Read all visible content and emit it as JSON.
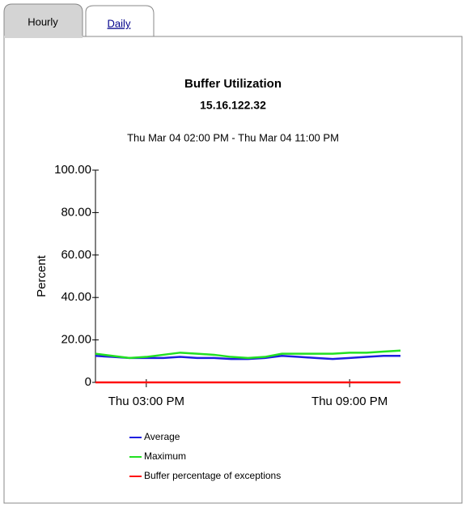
{
  "tabs": [
    "Hourly",
    "Daily"
  ],
  "chart_data": {
    "type": "line",
    "title": "Buffer Utilization",
    "subtitle": "15.16.122.32",
    "date_range": "Thu Mar 04 02:00 PM - Thu Mar 04 11:00 PM",
    "y_label": "Percent",
    "x": [
      13.5,
      14,
      14.5,
      15,
      15.5,
      16,
      16.5,
      17,
      17.5,
      18,
      18.5,
      19,
      19.5,
      20,
      20.5,
      21,
      21.5,
      22,
      22.5
    ],
    "xlim": [
      13.5,
      22.5
    ],
    "xticks": [
      {
        "value": 15,
        "label": "Thu 03:00 PM"
      },
      {
        "value": 21,
        "label": "Thu 09:00 PM"
      }
    ],
    "ylim": [
      0,
      100
    ],
    "yticks": [
      0,
      {
        "value": 20,
        "label": "20.00"
      },
      {
        "value": 40,
        "label": "40.00"
      },
      {
        "value": 60,
        "label": "60.00"
      },
      {
        "value": 80,
        "label": "80.00"
      },
      {
        "value": 100,
        "label": "100.00"
      }
    ],
    "series": [
      {
        "name": "Average",
        "color": "#1f1fe0",
        "values": [
          12.5,
          12,
          11.5,
          11.5,
          11.5,
          12,
          11.5,
          11.5,
          11,
          11,
          11.5,
          12.5,
          12,
          11.5,
          11,
          11.5,
          12,
          12.5,
          12.5
        ]
      },
      {
        "name": "Maximum",
        "color": "#22e022",
        "values": [
          13.5,
          12.5,
          11.5,
          12,
          13,
          14,
          13.5,
          13,
          12,
          11.5,
          12,
          13.5,
          13.5,
          13.5,
          13.5,
          14,
          14,
          14.5,
          15
        ]
      },
      {
        "name": "Buffer percentage of exceptions",
        "color": "#ff1010",
        "values": [
          0,
          0,
          0,
          0,
          0,
          0,
          0,
          0,
          0,
          0,
          0,
          0,
          0,
          0,
          0,
          0,
          0,
          0,
          0
        ]
      }
    ]
  }
}
